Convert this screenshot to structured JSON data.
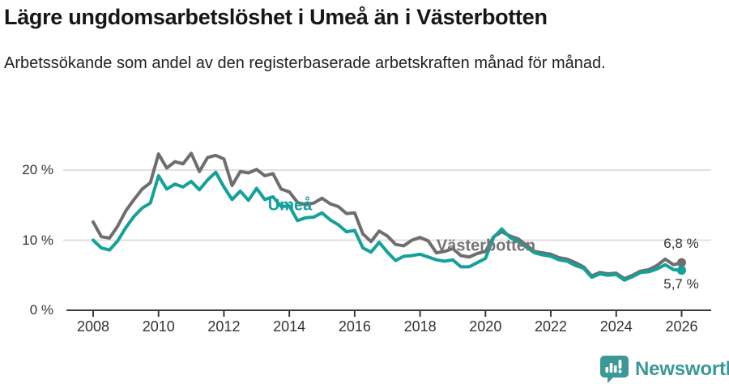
{
  "header": {
    "title": "Lägre ungdomsarbetslöshet i Umeå än i Västerbotten",
    "subtitle": "Arbetssökande som andel av den registerbaserade arbetskraften månad för månad."
  },
  "chart_data": {
    "type": "line",
    "title": "Lägre ungdomsarbetslöshet i Umeå än i Västerbotten",
    "subtitle": "Arbetssökande som andel av den registerbaserade arbetskraften månad för månad.",
    "unit": "%",
    "xlim": [
      2007.6,
      2026.9
    ],
    "ylim": [
      0,
      23
    ],
    "grid": true,
    "x_ticks": [
      2008,
      2010,
      2012,
      2014,
      2016,
      2018,
      2020,
      2022,
      2024,
      2026
    ],
    "yticks": [
      {
        "value": 0,
        "label": "0 %"
      },
      {
        "value": 10,
        "label": "10 %"
      },
      {
        "value": 20,
        "label": "20 %"
      }
    ],
    "x": [
      2008,
      2008.25,
      2008.5,
      2008.75,
      2009,
      2009.25,
      2009.5,
      2009.75,
      2010,
      2010.25,
      2010.5,
      2010.75,
      2011,
      2011.25,
      2011.5,
      2011.75,
      2012,
      2012.25,
      2012.5,
      2012.75,
      2013,
      2013.25,
      2013.5,
      2013.75,
      2014,
      2014.25,
      2014.5,
      2014.75,
      2015,
      2015.25,
      2015.5,
      2015.75,
      2016,
      2016.25,
      2016.5,
      2016.75,
      2017,
      2017.25,
      2017.5,
      2017.75,
      2018,
      2018.25,
      2018.5,
      2018.75,
      2019,
      2019.25,
      2019.5,
      2019.75,
      2020,
      2020.25,
      2020.5,
      2020.75,
      2021,
      2021.25,
      2021.5,
      2021.75,
      2022,
      2022.25,
      2022.5,
      2022.75,
      2023,
      2023.25,
      2023.5,
      2023.75,
      2024,
      2024.25,
      2024.5,
      2024.75,
      2025,
      2025.25,
      2025.5,
      2025.75,
      2026
    ],
    "series": [
      {
        "name": "Västerbotten",
        "color": "#6e6e6e",
        "end_label": "6,8 %",
        "end_value": 6.8,
        "values": [
          12.6,
          10.5,
          10.3,
          12.0,
          14.2,
          15.8,
          17.3,
          18.2,
          22.3,
          20.3,
          21.2,
          20.9,
          22.4,
          19.8,
          21.8,
          22.1,
          21.6,
          17.8,
          19.8,
          19.6,
          20.1,
          19.2,
          19.5,
          17.3,
          16.9,
          15.4,
          15.1,
          15.3,
          16.0,
          15.2,
          14.8,
          13.8,
          13.9,
          10.9,
          9.8,
          11.3,
          10.6,
          9.4,
          9.2,
          10.0,
          10.4,
          9.9,
          8.2,
          8.4,
          8.8,
          7.8,
          7.6,
          8.1,
          8.4,
          10.5,
          11.2,
          10.6,
          10.2,
          9.3,
          8.4,
          8.2,
          8.0,
          7.5,
          7.3,
          6.8,
          6.2,
          4.9,
          5.4,
          5.2,
          5.3,
          4.5,
          5.0,
          5.6,
          5.8,
          6.4,
          7.3,
          6.5,
          6.8
        ]
      },
      {
        "name": "Umeå",
        "color": "#14a199",
        "end_label": "5,7 %",
        "end_value": 5.7,
        "values": [
          10.0,
          8.9,
          8.6,
          9.9,
          11.8,
          13.4,
          14.6,
          15.3,
          19.2,
          17.3,
          18.0,
          17.6,
          18.4,
          17.2,
          18.6,
          19.7,
          17.6,
          15.8,
          17.0,
          15.7,
          17.4,
          15.8,
          16.2,
          14.8,
          14.9,
          12.8,
          13.2,
          13.3,
          13.9,
          12.9,
          12.2,
          11.2,
          11.4,
          8.9,
          8.3,
          9.7,
          8.3,
          7.1,
          7.7,
          7.8,
          8.0,
          7.6,
          7.2,
          7.0,
          7.2,
          6.2,
          6.2,
          6.8,
          7.4,
          10.4,
          11.6,
          10.4,
          9.8,
          9.0,
          8.2,
          7.9,
          7.7,
          7.2,
          7.0,
          6.4,
          6.0,
          4.7,
          5.2,
          5.0,
          5.1,
          4.3,
          4.8,
          5.4,
          5.5,
          5.9,
          6.5,
          5.8,
          5.7
        ]
      }
    ],
    "annotations": [
      {
        "text": "Umeå",
        "color": "#14a199"
      },
      {
        "text": "Västerbotten",
        "color": "#757575"
      }
    ],
    "legend_position": "inline-labels"
  },
  "footer": {
    "brand": "Newsworthy",
    "brand_color": "#3a9996"
  }
}
